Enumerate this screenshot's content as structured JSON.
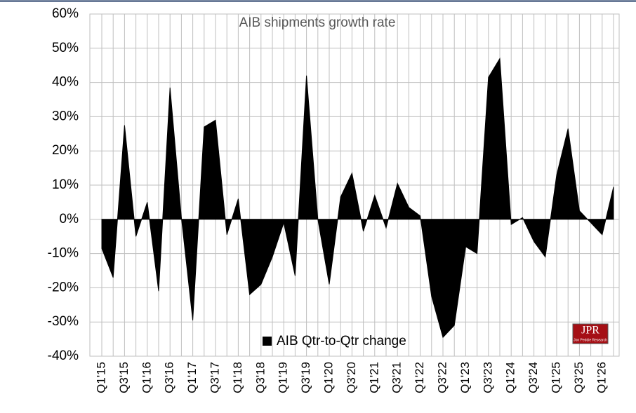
{
  "chart_data": {
    "type": "area",
    "title": "AIB shipments growth rate",
    "categories": [
      "Q1'15",
      null,
      "Q3'15",
      null,
      "Q1'16",
      null,
      "Q3'16",
      null,
      "Q1'17",
      null,
      "Q3'17",
      null,
      "Q1'18",
      null,
      "Q3'18",
      null,
      "Q1'19",
      null,
      "Q3'19",
      null,
      "Q1'20",
      null,
      "Q3'20",
      null,
      "Q1'21",
      null,
      "Q3'21",
      null,
      "Q1'22",
      null,
      "Q3'22",
      null,
      "Q1'23",
      null,
      "Q3'23",
      null,
      "Q1'24",
      null,
      "Q3'24",
      null,
      "Q1'25",
      null,
      "Q3'25",
      null,
      "Q1'26",
      null
    ],
    "series": [
      {
        "name": "AIB Qtr-to-Qtr change",
        "color": "#000000",
        "values": [
          -8.5,
          -17,
          27.5,
          -5,
          5,
          -21,
          38.5,
          0.5,
          -29.5,
          27,
          29,
          -4.5,
          6,
          -22,
          -19,
          -11,
          -1,
          -16.5,
          42,
          0,
          -19,
          6.5,
          13.5,
          -3.5,
          7,
          -2.5,
          10.5,
          3.5,
          1,
          -22.5,
          -34.5,
          -31,
          -8,
          -10,
          41.5,
          47,
          -1.5,
          0.5,
          -6.5,
          -11,
          13,
          26.5,
          2.5,
          -1,
          -4.5,
          9.5
        ]
      }
    ],
    "ylim": [
      -40,
      60
    ],
    "yticks": [
      {
        "value": -40,
        "label": "-40%"
      },
      {
        "value": -30,
        "label": "-30%"
      },
      {
        "value": -20,
        "label": "-20%"
      },
      {
        "value": -10,
        "label": "-10%"
      },
      {
        "value": 0,
        "label": "0%"
      },
      {
        "value": 10,
        "label": "10%"
      },
      {
        "value": 20,
        "label": "20%"
      },
      {
        "value": 30,
        "label": "30%"
      },
      {
        "value": 40,
        "label": "40%"
      },
      {
        "value": 50,
        "label": "50%"
      },
      {
        "value": 60,
        "label": "60%"
      }
    ],
    "grid": true,
    "legend": "bottom",
    "logo": {
      "text": "JPR",
      "subtext": "Jon Peddie Research"
    }
  }
}
